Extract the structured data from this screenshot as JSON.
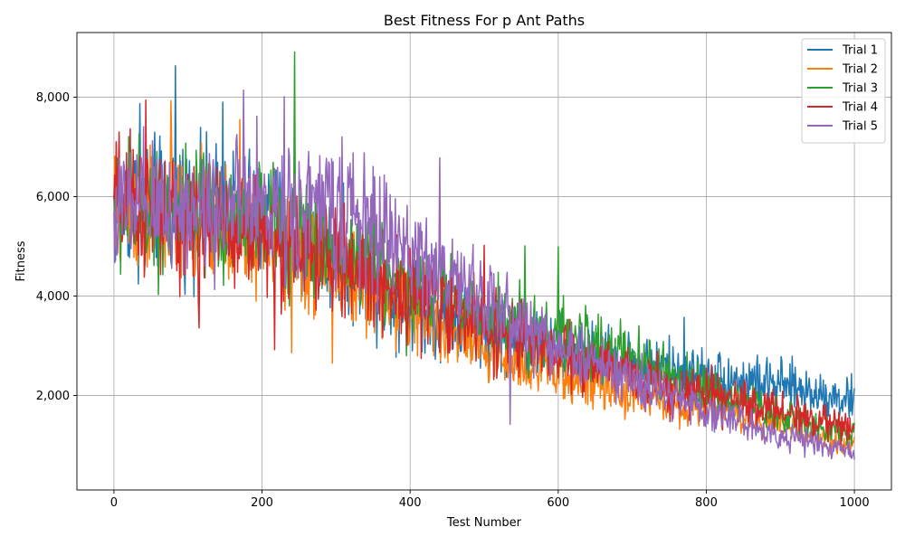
{
  "chart_data": {
    "type": "line",
    "title": "Best Fitness For p Ant Paths",
    "xlabel": "Test Number",
    "ylabel": "Fitness",
    "xlim": [
      -50,
      1050
    ],
    "ylim": [
      100,
      9300
    ],
    "x_ticks": [
      0,
      200,
      400,
      600,
      800,
      1000
    ],
    "y_ticks": [
      2000,
      4000,
      6000,
      8000
    ],
    "x_tick_labels": [
      "0",
      "200",
      "400",
      "600",
      "800",
      "1000"
    ],
    "y_tick_labels": [
      "2,000",
      "4,000",
      "6,000",
      "8,000"
    ],
    "grid": true,
    "legend_position": "top-right",
    "x_range": [
      0,
      1000
    ],
    "series": [
      {
        "name": "Trial 1",
        "color": "#1f77b4",
        "trend_points": [
          [
            0,
            5800
          ],
          [
            100,
            5800
          ],
          [
            200,
            5600
          ],
          [
            300,
            4800
          ],
          [
            400,
            3800
          ],
          [
            500,
            3300
          ],
          [
            600,
            2900
          ],
          [
            700,
            2650
          ],
          [
            800,
            2400
          ],
          [
            900,
            2200
          ],
          [
            1000,
            1900
          ]
        ],
        "peaks": [
          [
            83,
            8630
          ],
          [
            147,
            7900
          ],
          [
            35,
            7870
          ],
          [
            770,
            3570
          ]
        ]
      },
      {
        "name": "Trial 2",
        "color": "#ff7f0e",
        "trend_points": [
          [
            0,
            5800
          ],
          [
            100,
            5500
          ],
          [
            200,
            5200
          ],
          [
            300,
            4500
          ],
          [
            400,
            3700
          ],
          [
            500,
            2900
          ],
          [
            600,
            2400
          ],
          [
            700,
            2000
          ],
          [
            800,
            1750
          ],
          [
            900,
            1400
          ],
          [
            1000,
            1000
          ]
        ],
        "peaks": [
          [
            77,
            7930
          ],
          [
            170,
            7550
          ],
          [
            240,
            2860
          ],
          [
            295,
            2650
          ]
        ]
      },
      {
        "name": "Trial 3",
        "color": "#2ca02c",
        "trend_points": [
          [
            0,
            5900
          ],
          [
            100,
            5600
          ],
          [
            200,
            5500
          ],
          [
            300,
            4900
          ],
          [
            400,
            4300
          ],
          [
            500,
            3700
          ],
          [
            600,
            3200
          ],
          [
            700,
            2700
          ],
          [
            800,
            2100
          ],
          [
            900,
            1600
          ],
          [
            1000,
            1200
          ]
        ],
        "peaks": [
          [
            244,
            8910
          ],
          [
            600,
            4990
          ],
          [
            555,
            5010
          ],
          [
            395,
            2800
          ]
        ]
      },
      {
        "name": "Trial 4",
        "color": "#d62728",
        "trend_points": [
          [
            0,
            5900
          ],
          [
            100,
            5500
          ],
          [
            200,
            5200
          ],
          [
            300,
            4700
          ],
          [
            400,
            4100
          ],
          [
            500,
            3400
          ],
          [
            600,
            2800
          ],
          [
            700,
            2400
          ],
          [
            800,
            2000
          ],
          [
            900,
            1700
          ],
          [
            1000,
            1300
          ]
        ],
        "peaks": [
          [
            43,
            7940
          ],
          [
            115,
            3360
          ],
          [
            217,
            2920
          ],
          [
            500,
            5020
          ]
        ]
      },
      {
        "name": "Trial 5",
        "color": "#9467bd",
        "trend_points": [
          [
            0,
            5700
          ],
          [
            100,
            5800
          ],
          [
            200,
            5800
          ],
          [
            300,
            5800
          ],
          [
            400,
            4900
          ],
          [
            500,
            3900
          ],
          [
            600,
            3000
          ],
          [
            700,
            2300
          ],
          [
            800,
            1700
          ],
          [
            900,
            1200
          ],
          [
            1000,
            850
          ]
        ],
        "peaks": [
          [
            175,
            8140
          ],
          [
            230,
            8010
          ],
          [
            440,
            6780
          ],
          [
            535,
            1420
          ]
        ]
      }
    ]
  }
}
